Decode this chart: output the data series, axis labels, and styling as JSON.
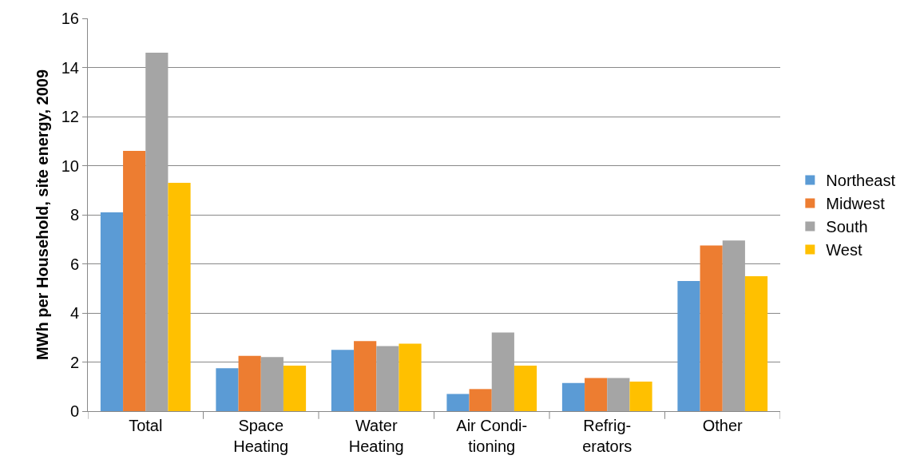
{
  "chart_data": {
    "type": "bar",
    "ylabel": "MWh per Household, site energy, 2009",
    "categories": [
      "Total",
      "Space\nHeating",
      "Water\nHeating",
      "Air Condi-\ntioning",
      "Refrig-\nerators",
      "Other"
    ],
    "series": [
      {
        "name": "Northeast",
        "color": "#5b9bd5",
        "values": [
          8.1,
          1.75,
          2.5,
          0.7,
          1.15,
          5.3
        ]
      },
      {
        "name": "Midwest",
        "color": "#ed7d31",
        "values": [
          10.6,
          2.25,
          2.85,
          0.9,
          1.35,
          6.75
        ]
      },
      {
        "name": "South",
        "color": "#a5a5a5",
        "values": [
          14.6,
          2.2,
          2.65,
          3.2,
          1.35,
          6.95
        ]
      },
      {
        "name": "West",
        "color": "#ffc000",
        "values": [
          9.3,
          1.85,
          2.75,
          1.85,
          1.2,
          5.5
        ]
      }
    ],
    "ylim": [
      0,
      16
    ],
    "yticks": [
      0,
      2,
      4,
      6,
      8,
      10,
      12,
      14,
      16
    ],
    "grid": "y",
    "legend": "right"
  }
}
